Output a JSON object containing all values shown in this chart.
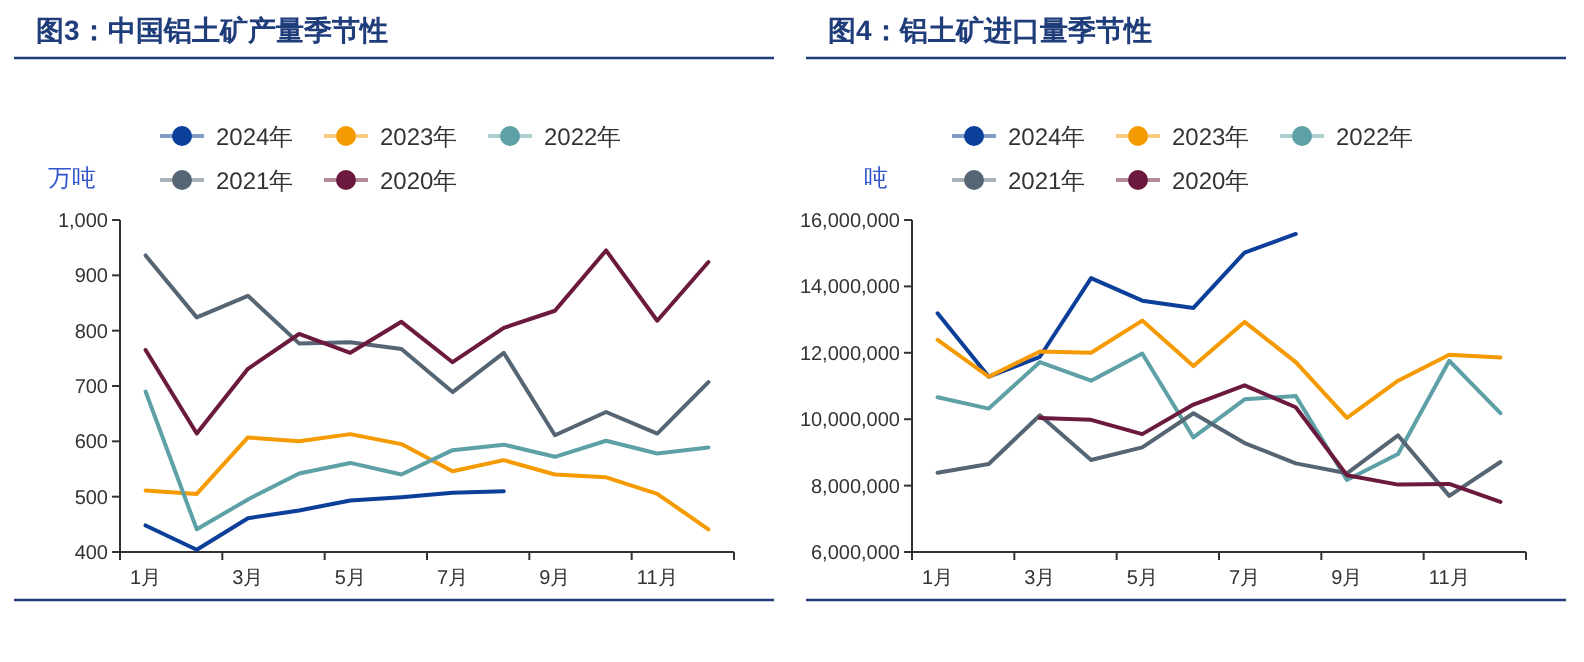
{
  "chart_data": [
    {
      "type": "line",
      "title": "图3：中国铝土矿产量季节性",
      "ylabel": "万吨",
      "legend": "top",
      "categories": [
        "1月",
        null,
        "3月",
        null,
        "5月",
        null,
        "7月",
        null,
        "9月",
        null,
        "11月",
        null
      ],
      "ylim": [
        400,
        1000
      ],
      "yticks": [
        400,
        500,
        600,
        700,
        800,
        900,
        {
          "value": 1000,
          "label": "1,000"
        }
      ],
      "series": [
        {
          "name": "2024年",
          "color": "#0b3f99",
          "values": [
            448,
            404,
            461,
            475,
            493,
            499,
            507,
            510,
            null,
            null,
            null,
            null
          ]
        },
        {
          "name": "2023年",
          "color": "#f59a00",
          "values": [
            511,
            505,
            607,
            600,
            613,
            595,
            546,
            566,
            540,
            535,
            505,
            441
          ]
        },
        {
          "name": "2022年",
          "color": "#5da0a6",
          "values": [
            690,
            441,
            495,
            542,
            561,
            540,
            584,
            594,
            572,
            601,
            578,
            589
          ]
        },
        {
          "name": "2021年",
          "color": "#566573",
          "values": [
            936,
            824,
            863,
            777,
            779,
            767,
            689,
            760,
            611,
            653,
            614,
            707
          ]
        },
        {
          "name": "2020年",
          "color": "#6b1a3e",
          "values": [
            765,
            614,
            731,
            794,
            760,
            816,
            743,
            805,
            836,
            945,
            818,
            924
          ]
        }
      ]
    },
    {
      "type": "line",
      "title": "图4：铝土矿进口量季节性",
      "ylabel": "吨",
      "legend": "top",
      "categories": [
        "1月",
        null,
        "3月",
        null,
        "5月",
        null,
        "7月",
        null,
        "9月",
        null,
        "11月",
        null
      ],
      "ylim": [
        6000000,
        16000000
      ],
      "yticks": [
        {
          "value": 6000000,
          "label": "6,000,000"
        },
        {
          "value": 8000000,
          "label": "8,000,000"
        },
        {
          "value": 10000000,
          "label": "10,000,000"
        },
        {
          "value": 12000000,
          "label": "12,000,000"
        },
        {
          "value": 14000000,
          "label": "14,000,000"
        },
        {
          "value": 16000000,
          "label": "16,000,000"
        }
      ],
      "series": [
        {
          "name": "2024年",
          "color": "#0b3f99",
          "values": [
            13190000,
            11280000,
            11880000,
            14250000,
            13570000,
            13350000,
            15020000,
            15580000,
            null,
            null,
            null,
            null
          ]
        },
        {
          "name": "2023年",
          "color": "#f59a00",
          "values": [
            12390000,
            11280000,
            12040000,
            12000000,
            12970000,
            11600000,
            12930000,
            11720000,
            10040000,
            11160000,
            11940000,
            11860000
          ]
        },
        {
          "name": "2022年",
          "color": "#5da0a6",
          "values": [
            10660000,
            10320000,
            11720000,
            11160000,
            11980000,
            9450000,
            10600000,
            10700000,
            8170000,
            8950000,
            11760000,
            10180000
          ]
        },
        {
          "name": "2021年",
          "color": "#566573",
          "values": [
            8390000,
            8650000,
            10120000,
            8770000,
            9150000,
            10180000,
            9280000,
            8670000,
            8370000,
            9510000,
            7690000,
            8710000
          ]
        },
        {
          "name": "2020年",
          "color": "#6b1a3e",
          "values": [
            null,
            null,
            10040000,
            9980000,
            9550000,
            10440000,
            11020000,
            10360000,
            8310000,
            8030000,
            8050000,
            7510000
          ]
        }
      ]
    }
  ]
}
